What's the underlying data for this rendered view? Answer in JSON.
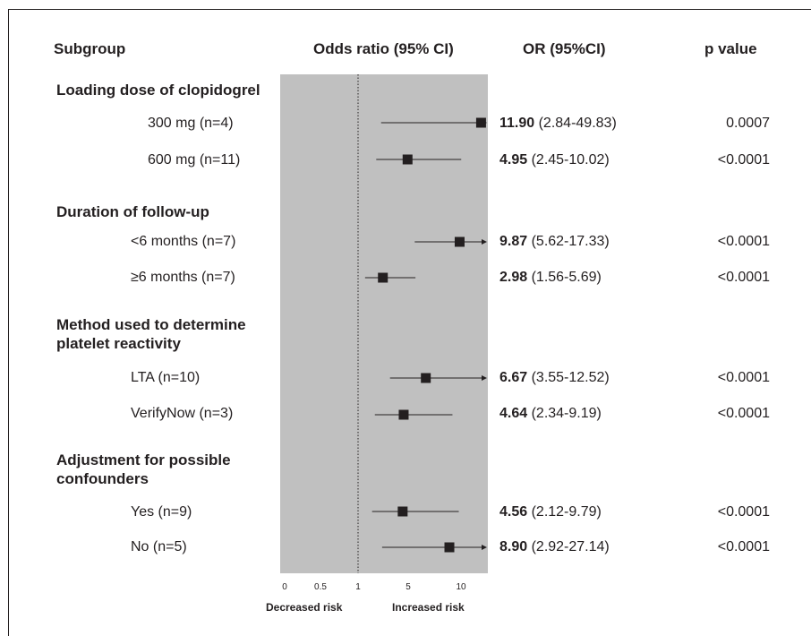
{
  "headers": {
    "subgroup": "Subgroup",
    "odds_ratio": "Odds ratio (95% CI)",
    "or_ci": "OR (95%CI)",
    "p_value": "p value"
  },
  "groups": [
    {
      "title_lines": [
        "Loading dose of clopidogrel"
      ]
    },
    {
      "title_lines": [
        "Duration of follow-up"
      ]
    },
    {
      "title_lines": [
        "Method used to determine",
        "platelet reactivity"
      ]
    },
    {
      "title_lines": [
        "Adjustment for possible",
        "confounders"
      ]
    }
  ],
  "rows": [
    {
      "label": "300 mg (n=4)",
      "or_bold": "11.90",
      "ci_text": " (2.84-49.83)",
      "p": "0.0007"
    },
    {
      "label": "600 mg (n=11)",
      "or_bold": "4.95",
      "ci_text": " (2.45-10.02)",
      "p": "<0.0001"
    },
    {
      "label": "<6 months (n=7)",
      "or_bold": "9.87",
      "ci_text": " (5.62-17.33)",
      "p": "<0.0001"
    },
    {
      "label": "≥6 months (n=7)",
      "or_bold": "2.98",
      "ci_text": " (1.56-5.69)",
      "p": "<0.0001"
    },
    {
      "label": "LTA (n=10)",
      "or_bold": "6.67",
      "ci_text": " (3.55-12.52)",
      "p": "<0.0001"
    },
    {
      "label": "VerifyNow (n=3)",
      "or_bold": "4.64",
      "ci_text": " (2.34-9.19)",
      "p": "<0.0001"
    },
    {
      "label": "Yes (n=9)",
      "or_bold": "4.56",
      "ci_text": " (2.12-9.79)",
      "p": "<0.0001"
    },
    {
      "label": "No (n=5)",
      "or_bold": "8.90",
      "ci_text": " (2.92-27.14)",
      "p": "<0.0001"
    }
  ],
  "axis": {
    "ticks": [
      "0",
      "0.5",
      "1",
      "5",
      "10"
    ],
    "left_label": "Decreased risk",
    "right_label": "Increased risk"
  },
  "colors": {
    "plot_background": "#c0c0c0",
    "marker": "#231f20",
    "text": "#231f20"
  },
  "chart_data": {
    "type": "forest",
    "x_reference": 1,
    "axis_ticks": [
      0,
      0.5,
      1,
      5,
      10
    ],
    "points": [
      {
        "label": "300 mg (n=4)",
        "or": 11.9,
        "lo": 2.84,
        "hi": 49.83
      },
      {
        "label": "600 mg (n=11)",
        "or": 4.95,
        "lo": 2.45,
        "hi": 10.02
      },
      {
        "label": "<6 months (n=7)",
        "or": 9.87,
        "lo": 5.62,
        "hi": 17.33
      },
      {
        "label": "≥6 months (n=7)",
        "or": 2.98,
        "lo": 1.56,
        "hi": 5.69
      },
      {
        "label": "LTA (n=10)",
        "or": 6.67,
        "lo": 3.55,
        "hi": 12.52
      },
      {
        "label": "VerifyNow (n=3)",
        "or": 4.64,
        "lo": 2.34,
        "hi": 9.19
      },
      {
        "label": "Yes (n=9)",
        "or": 4.56,
        "lo": 2.12,
        "hi": 9.79
      },
      {
        "label": "No (n=5)",
        "or": 8.9,
        "lo": 2.92,
        "hi": 27.14
      }
    ]
  }
}
